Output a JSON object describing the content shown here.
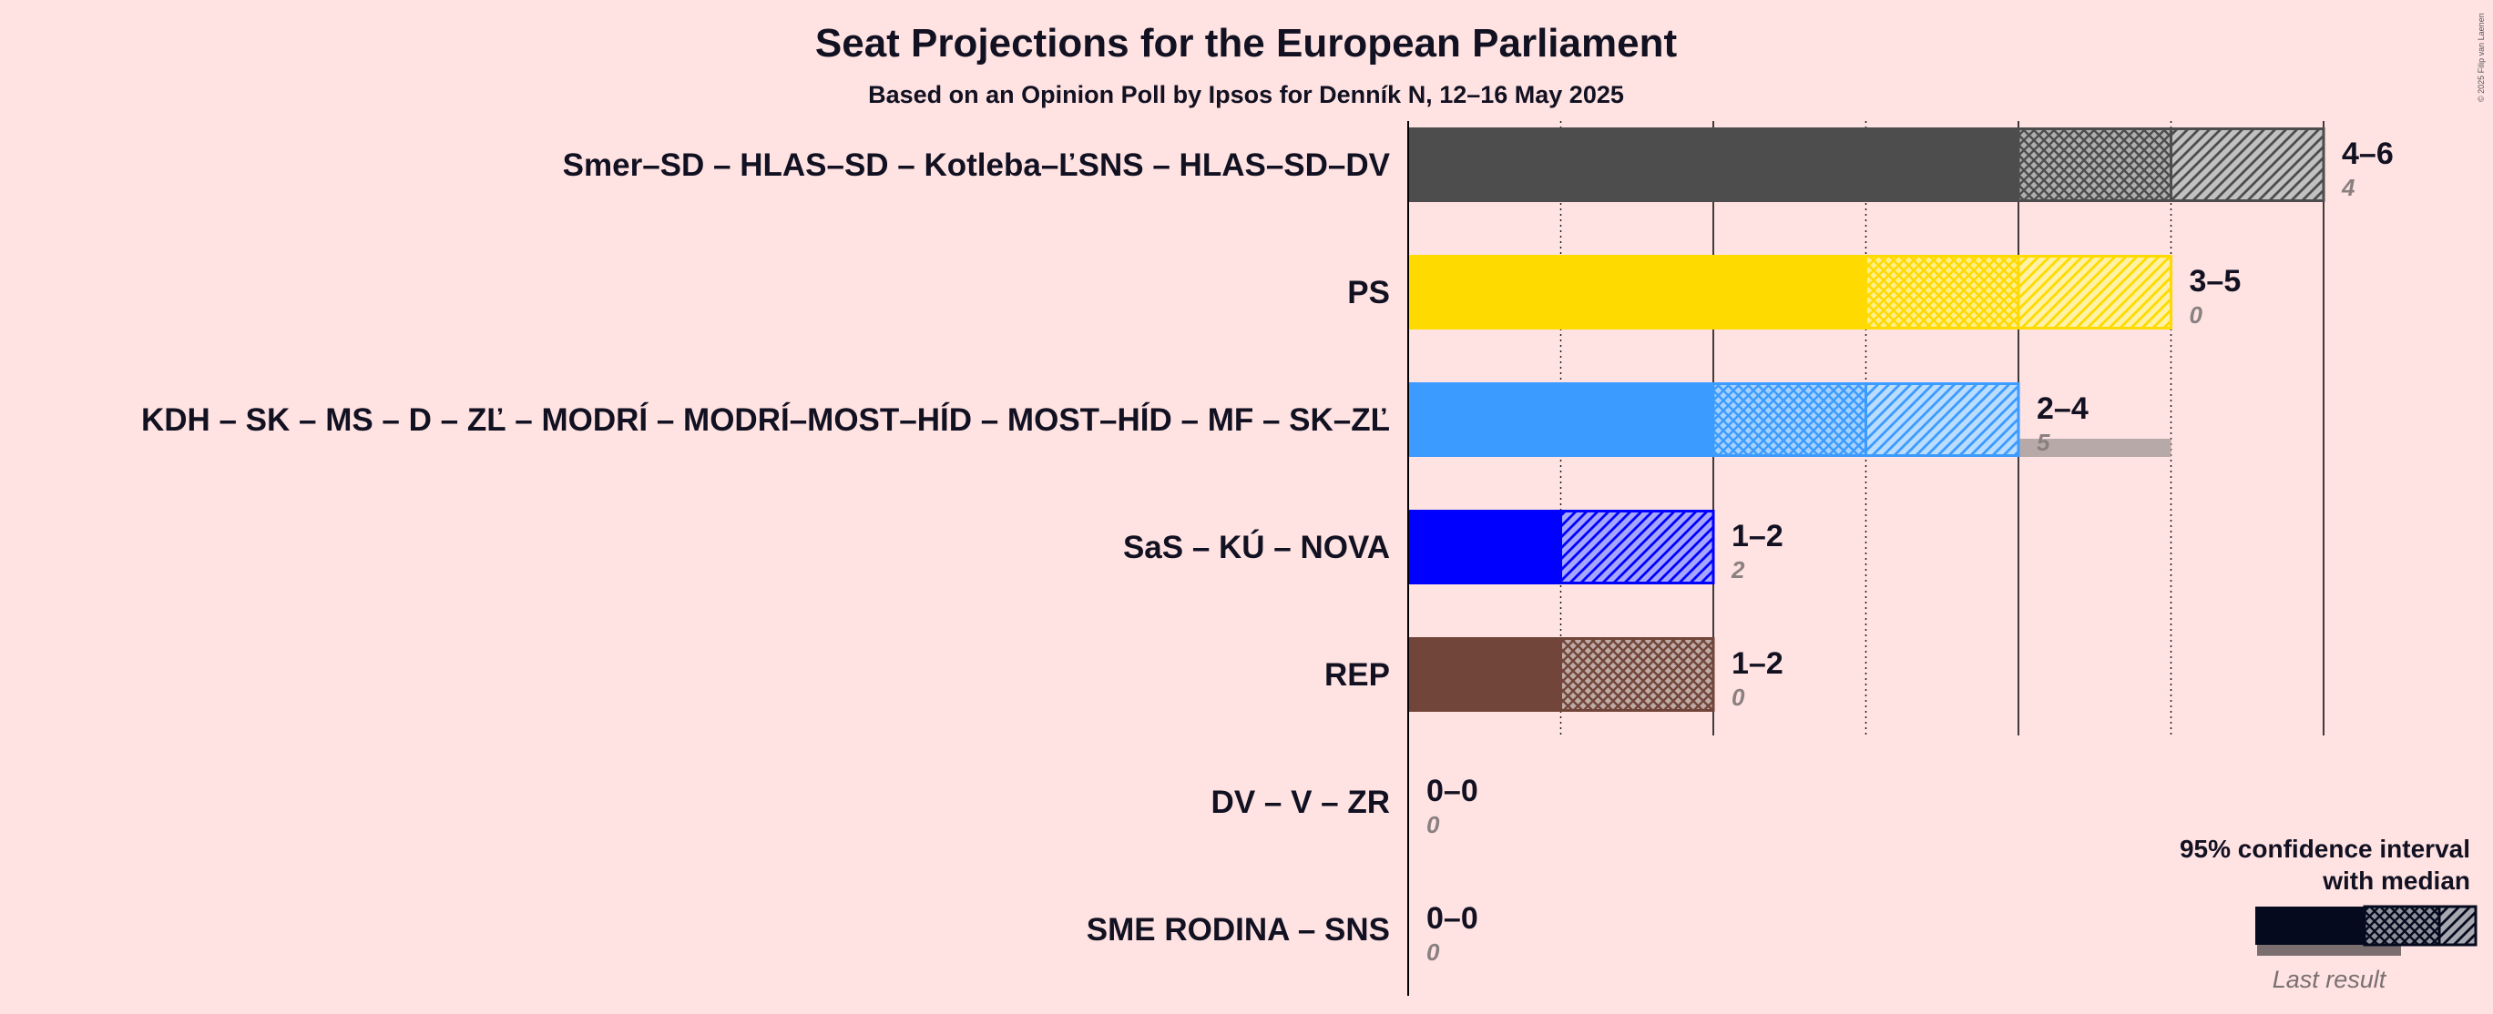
{
  "title": "Seat Projections for the European Parliament",
  "subtitle": "Based on an Opinion Poll by Ipsos for Denník N, 12–16 May 2025",
  "copyright": "© 2025 Filip van Laenen",
  "legend": {
    "line1": "95% confidence interval",
    "line2": "with median",
    "last_result": "Last result"
  },
  "chart_data": {
    "type": "bar",
    "title": "Seat Projections for the European Parliament",
    "subtitle": "Based on an Opinion Poll by Ipsos for Denník N, 12–16 May 2025",
    "x_range": [
      0,
      6
    ],
    "grid": true,
    "series": [
      {
        "party": "Smer–SD – HLAS–SD – Kotleba–ĽSNS – HLAS–SD–DV",
        "low": 4,
        "median": 5,
        "high": 6,
        "range_label": "4–6",
        "last_result": 4,
        "last_label": "4",
        "color": "#4D4D4D"
      },
      {
        "party": "PS",
        "low": 3,
        "median": 4,
        "high": 5,
        "range_label": "3–5",
        "last_result": 0,
        "last_label": "0",
        "color": "#FFDA00"
      },
      {
        "party": "KDH – SK – MS – D – ZĽ – MODRÍ – MODRÍ–MOST–HÍD – MOST–HÍD – MF – SK–ZĽ",
        "low": 2,
        "median": 3,
        "high": 4,
        "range_label": "2–4",
        "last_result": 5,
        "last_label": "5",
        "color": "#3B9BFF"
      },
      {
        "party": "SaS – KÚ – NOVA",
        "low": 1,
        "median": 1,
        "high": 2,
        "range_label": "1–2",
        "last_result": 2,
        "last_label": "2",
        "color": "#0000FF"
      },
      {
        "party": "REP",
        "low": 1,
        "median": 2,
        "high": 2,
        "range_label": "1–2",
        "last_result": 0,
        "last_label": "0",
        "color": "#71453A"
      },
      {
        "party": "DV – V – ZR",
        "low": 0,
        "median": 0,
        "high": 0,
        "range_label": "0–0",
        "last_result": 0,
        "last_label": "0",
        "color": "#888888"
      },
      {
        "party": "SME RODINA – SNS",
        "low": 0,
        "median": 0,
        "high": 0,
        "range_label": "0–0",
        "last_result": 0,
        "last_label": "0",
        "color": "#888888"
      }
    ]
  }
}
